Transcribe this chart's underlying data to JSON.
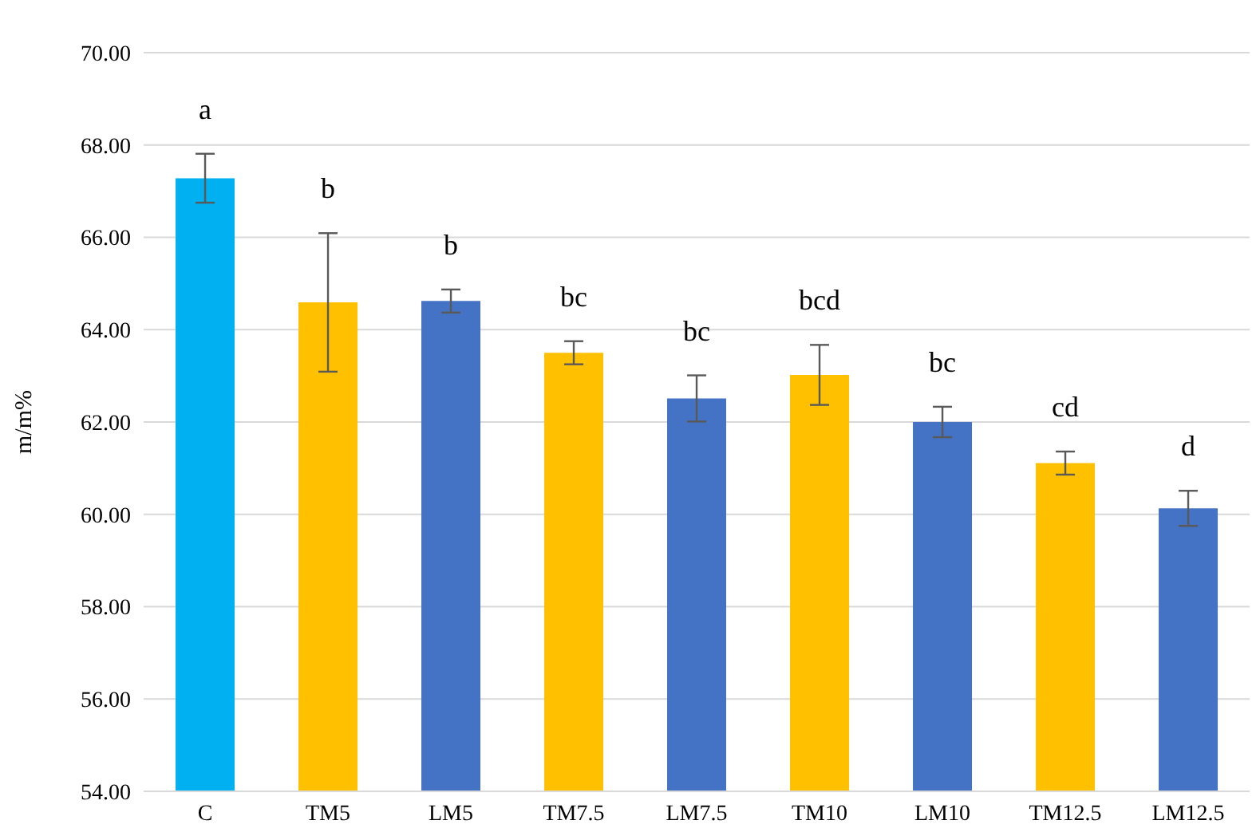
{
  "chart_data": {
    "type": "bar",
    "ylabel": "m/m%",
    "categories": [
      "C",
      "TM5",
      "LM5",
      "TM7.5",
      "LM7.5",
      "TM10",
      "LM10",
      "TM12.5",
      "LM12.5"
    ],
    "values": [
      67.28,
      64.59,
      64.62,
      63.5,
      62.51,
      63.02,
      62.0,
      61.11,
      60.13
    ],
    "colors": [
      "#00b0f0",
      "#ffc000",
      "#4472c4",
      "#ffc000",
      "#4472c4",
      "#ffc000",
      "#4472c4",
      "#ffc000",
      "#4472c4"
    ],
    "errors": [
      0.53,
      1.5,
      0.25,
      0.25,
      0.5,
      0.65,
      0.33,
      0.25,
      0.38
    ],
    "ylim": [
      54,
      70
    ],
    "yticks": [
      {
        "value": 54,
        "label": "54.00"
      },
      {
        "value": 56,
        "label": "56.00"
      },
      {
        "value": 58,
        "label": "58.00"
      },
      {
        "value": 60,
        "label": "60.00"
      },
      {
        "value": 62,
        "label": "62.00"
      },
      {
        "value": 64,
        "label": "64.00"
      },
      {
        "value": 66,
        "label": "66.00"
      },
      {
        "value": 68,
        "label": "68.00"
      },
      {
        "value": 70,
        "label": "70.00"
      }
    ],
    "grid": "y",
    "annotations": [
      "a",
      "b",
      "b",
      "bc",
      "bc",
      "bcd",
      "bc",
      "cd",
      "d"
    ]
  }
}
